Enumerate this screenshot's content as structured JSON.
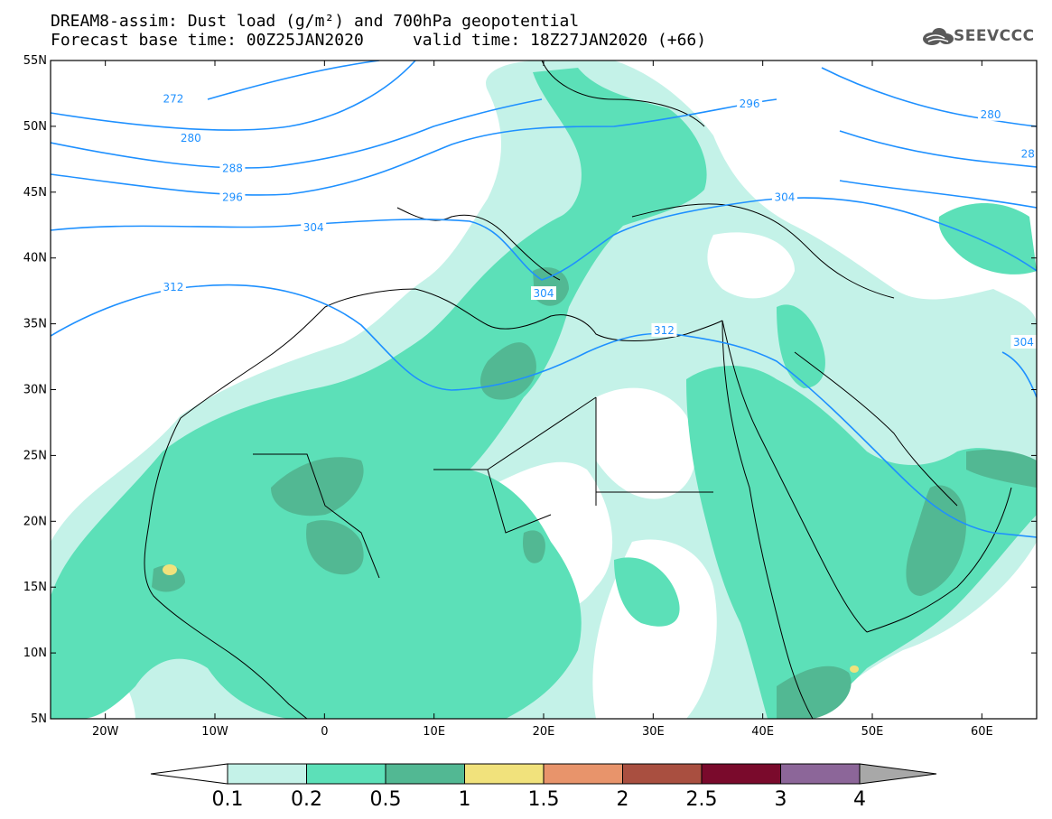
{
  "header": {
    "title_line1": "DREAM8-assim: Dust load (g/m²) and 700hPa geopotential",
    "title_line2": "Forecast base time: 00Z25JAN2020     valid time: 18Z27JAN2020 (+66)",
    "logo_text": "SEEVCCC"
  },
  "map": {
    "lon_range": [
      -25,
      65
    ],
    "lat_range": [
      5,
      55
    ],
    "lat_labels": [
      "55N",
      "50N",
      "45N",
      "40N",
      "35N",
      "30N",
      "25N",
      "20N",
      "15N",
      "10N",
      "5N"
    ],
    "lat_values": [
      55,
      50,
      45,
      40,
      35,
      30,
      25,
      20,
      15,
      10,
      5
    ],
    "lon_labels": [
      "20W",
      "10W",
      "0",
      "10E",
      "20E",
      "30E",
      "40E",
      "50E",
      "60E"
    ],
    "lon_values": [
      -20,
      -10,
      0,
      10,
      20,
      30,
      40,
      50,
      60
    ],
    "contour_labels": [
      {
        "text": "272",
        "lon": -13.8,
        "lat": 52.1
      },
      {
        "text": "280",
        "lon": -12.2,
        "lat": 49.1
      },
      {
        "text": "288",
        "lon": -8.4,
        "lat": 46.8
      },
      {
        "text": "296",
        "lon": -8.4,
        "lat": 44.6
      },
      {
        "text": "304",
        "lon": -1.0,
        "lat": 42.3
      },
      {
        "text": "312",
        "lon": -13.8,
        "lat": 37.8
      },
      {
        "text": "304",
        "lon": 20.0,
        "lat": 37.3
      },
      {
        "text": "312",
        "lon": 31.0,
        "lat": 34.5
      },
      {
        "text": "296",
        "lon": 38.8,
        "lat": 51.7
      },
      {
        "text": "304",
        "lon": 42.0,
        "lat": 44.6
      },
      {
        "text": "280",
        "lon": 60.8,
        "lat": 50.9
      },
      {
        "text": "28",
        "lon": 64.2,
        "lat": 47.9
      },
      {
        "text": "304",
        "lon": 63.8,
        "lat": 33.6
      }
    ]
  },
  "colorbar": {
    "labels": [
      "0.1",
      "0.2",
      "0.5",
      "1",
      "1.5",
      "2",
      "2.5",
      "3",
      "4"
    ],
    "colors": [
      "#c4f2e8",
      "#5ce0b8",
      "#52b893",
      "#f1e27c",
      "#e8946b",
      "#a94f40",
      "#7a0a2c",
      "#8c6699"
    ],
    "under_color": "#ffffff",
    "over_color": "#a8a8a8"
  },
  "colors": {
    "contour": "#1e90ff",
    "dust_light": "#c4f2e8",
    "dust_mid": "#5ce0b8",
    "dust_dark": "#52b893",
    "dust_yellow": "#f1e27c"
  }
}
